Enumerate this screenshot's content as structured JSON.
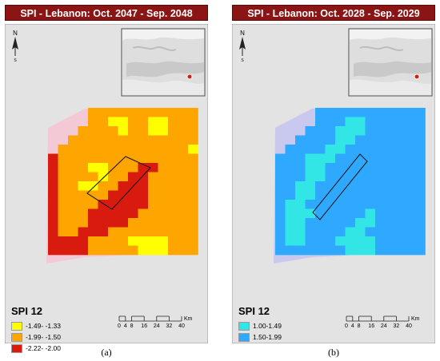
{
  "figure_a": {
    "title": "SPI - Lebanon: Oct. 2047 - Sep. 2048",
    "caption": "(a)",
    "legend_title": "SPI 12",
    "legend": [
      {
        "label": "-1.49- -1.33",
        "color": "#ffff00"
      },
      {
        "label": "-1.99- -1.50",
        "color": "#ffa500"
      },
      {
        "label": "-2.22- -2.00",
        "color": "#d91b0f"
      }
    ],
    "scale_labels": [
      "0",
      "4",
      "8",
      "16",
      "24",
      "32",
      "40"
    ],
    "scale_unit": "Km"
  },
  "figure_b": {
    "title": "SPI - Lebanon: Oct. 2028 - Sep. 2029",
    "caption": "(b)",
    "legend_title": "SPI 12",
    "legend": [
      {
        "label": "1.00-1.49",
        "color": "#33e6e6"
      },
      {
        "label": "1.50-1.99",
        "color": "#2fa8ff"
      }
    ],
    "scale_labels": [
      "0",
      "4",
      "8",
      "16",
      "24",
      "32",
      "40"
    ],
    "scale_unit": "Km"
  },
  "north_arrow_icon": "north-arrow-icon",
  "colors": {
    "map_background": "#e3e3e3",
    "frame": "#9a9a9a",
    "title_background": "#8b1414",
    "title_text": "#ffffff"
  }
}
